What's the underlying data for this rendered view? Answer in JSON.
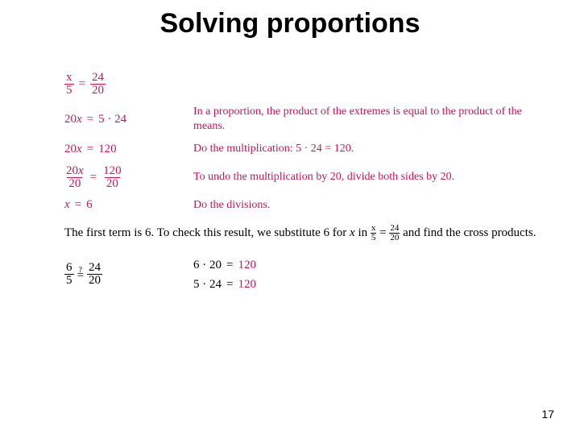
{
  "title": "Solving proportions",
  "steps": [
    {
      "eq_html": "<span class='frac'><span class='n'>x</span><span class='d'>5</span></span><span class='eq'>=</span><span class='frac'><span class='n'>24</span><span class='d'>20</span></span>",
      "explain": ""
    },
    {
      "eq_html": "20<i>x</i><span class='eq'>=</span>5 · 24",
      "explain": "In a proportion, the product of the extremes is equal to the product of the means."
    },
    {
      "eq_html": "20<i>x</i><span class='eq'>=</span>120",
      "explain": "Do the multiplication: 5 · 24 = 120."
    },
    {
      "eq_html": "<span class='frac'><span class='n'>20<i>x</i></span><span class='d'>20</span></span><span class='eq'>=</span><span class='frac'><span class='n'>120</span><span class='d'>20</span></span>",
      "explain": "To undo the multiplication by 20, divide both sides by 20."
    },
    {
      "eq_html": "<i>x</i><span class='eq'>=</span>6",
      "explain": "Do the divisions."
    }
  ],
  "paragraph": {
    "pre": "The first term is 6. To check this result, we substitute 6 for ",
    "var": "x",
    "mid": " in ",
    "post": " and find the cross products."
  },
  "inline_frac1": {
    "n": "x",
    "d": "5"
  },
  "inline_eq": "=",
  "inline_frac2": {
    "n": "24",
    "d": "20"
  },
  "check": {
    "left_f1": {
      "n": "6",
      "d": "5"
    },
    "left_q": "?",
    "left_eq": "=",
    "left_f2": {
      "n": "24",
      "d": "20"
    },
    "r1_lhs": "6 · 20",
    "r1_eq": "=",
    "r1_rhs": "120",
    "r2_lhs": "5 · 24",
    "r2_eq": "=",
    "r2_rhs": "120"
  },
  "page_number": "17",
  "colors": {
    "title": "#000000",
    "body_text": "#000000",
    "math_accent": "#c2185b",
    "background": "#ffffff"
  },
  "typography": {
    "title_font": "Arial",
    "title_size_pt": 26,
    "title_weight": "bold",
    "body_font": "Times New Roman",
    "body_size_pt": 11,
    "math_size_pt": 11
  }
}
